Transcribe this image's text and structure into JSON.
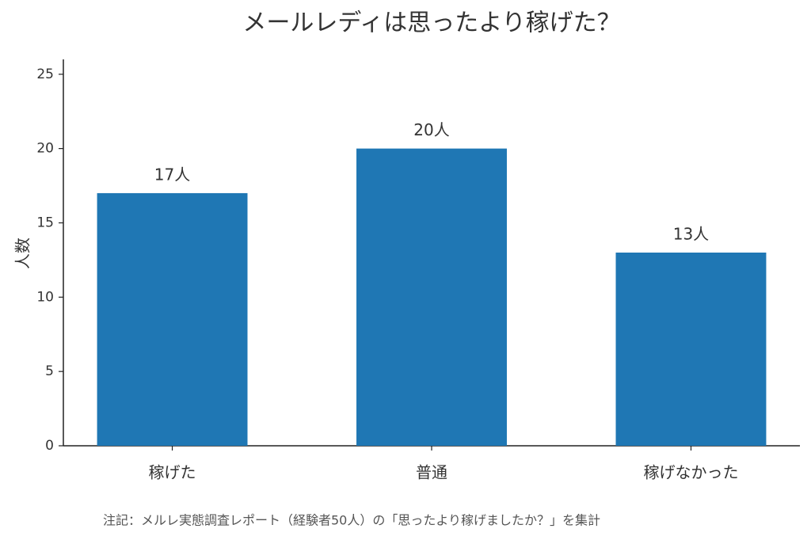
{
  "chart_data": {
    "type": "bar",
    "title": "メールレディは思ったより稼げた？",
    "y_label": "人数",
    "categories": [
      "稼げた",
      "普通",
      "稼げなかった"
    ],
    "values": [
      17,
      20,
      13
    ],
    "value_labels": [
      "17人",
      "20人",
      "13人"
    ],
    "color": "#1f77b4",
    "ylim": [
      0,
      26
    ],
    "yticks": [
      0,
      5,
      10,
      15,
      20,
      25
    ],
    "grid": false,
    "note": "注記：メルレ実態調査レポート（経験者50人）の「思ったより稼げましたか？」を集計"
  }
}
